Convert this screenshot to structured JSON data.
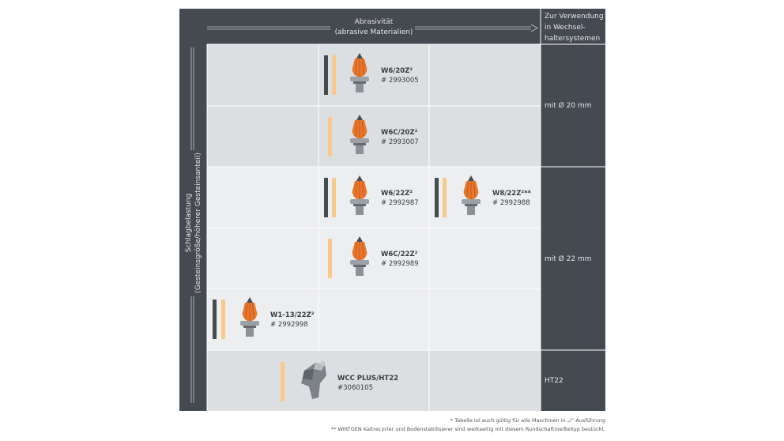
{
  "header": {
    "column_title": "Abrasivität",
    "column_subtitle": "(abrasive Materialien)",
    "right_header": [
      "Zur Verwendung",
      "in Wechsel-",
      "haltersystemen"
    ],
    "row_title": "Schlagbelastung",
    "row_subtitle": "(Gesteinsgröße/höherer Gesteinsanteil)"
  },
  "holders": [
    "mit Ø 20 mm",
    "mit Ø 22 mm",
    "HT22"
  ],
  "products": [
    {
      "name": "W6/20Z²",
      "number": "# 2993005"
    },
    {
      "name": "W6C/20Z²",
      "number": "# 2993007"
    },
    {
      "name": "W6/22Z²",
      "number": "# 2992987"
    },
    {
      "name": "W8/22Z²**",
      "number": "# 2992988"
    },
    {
      "name": "W6C/22Z²",
      "number": "# 2992989"
    },
    {
      "name": "W1-13/22Z²",
      "number": "# 2992998"
    },
    {
      "name": "WCC PLUS/HT22",
      "number": "#3060105"
    }
  ],
  "footnotes": [
    "* Tabelle ist auch gültig für alle Maschinen in „i“-Ausführung",
    "** WIRTGEN Kaltrecycler und Bodenstabilisierer sind werkseitig mit diesem Rundschaftmeißeltyp bestückt."
  ]
}
